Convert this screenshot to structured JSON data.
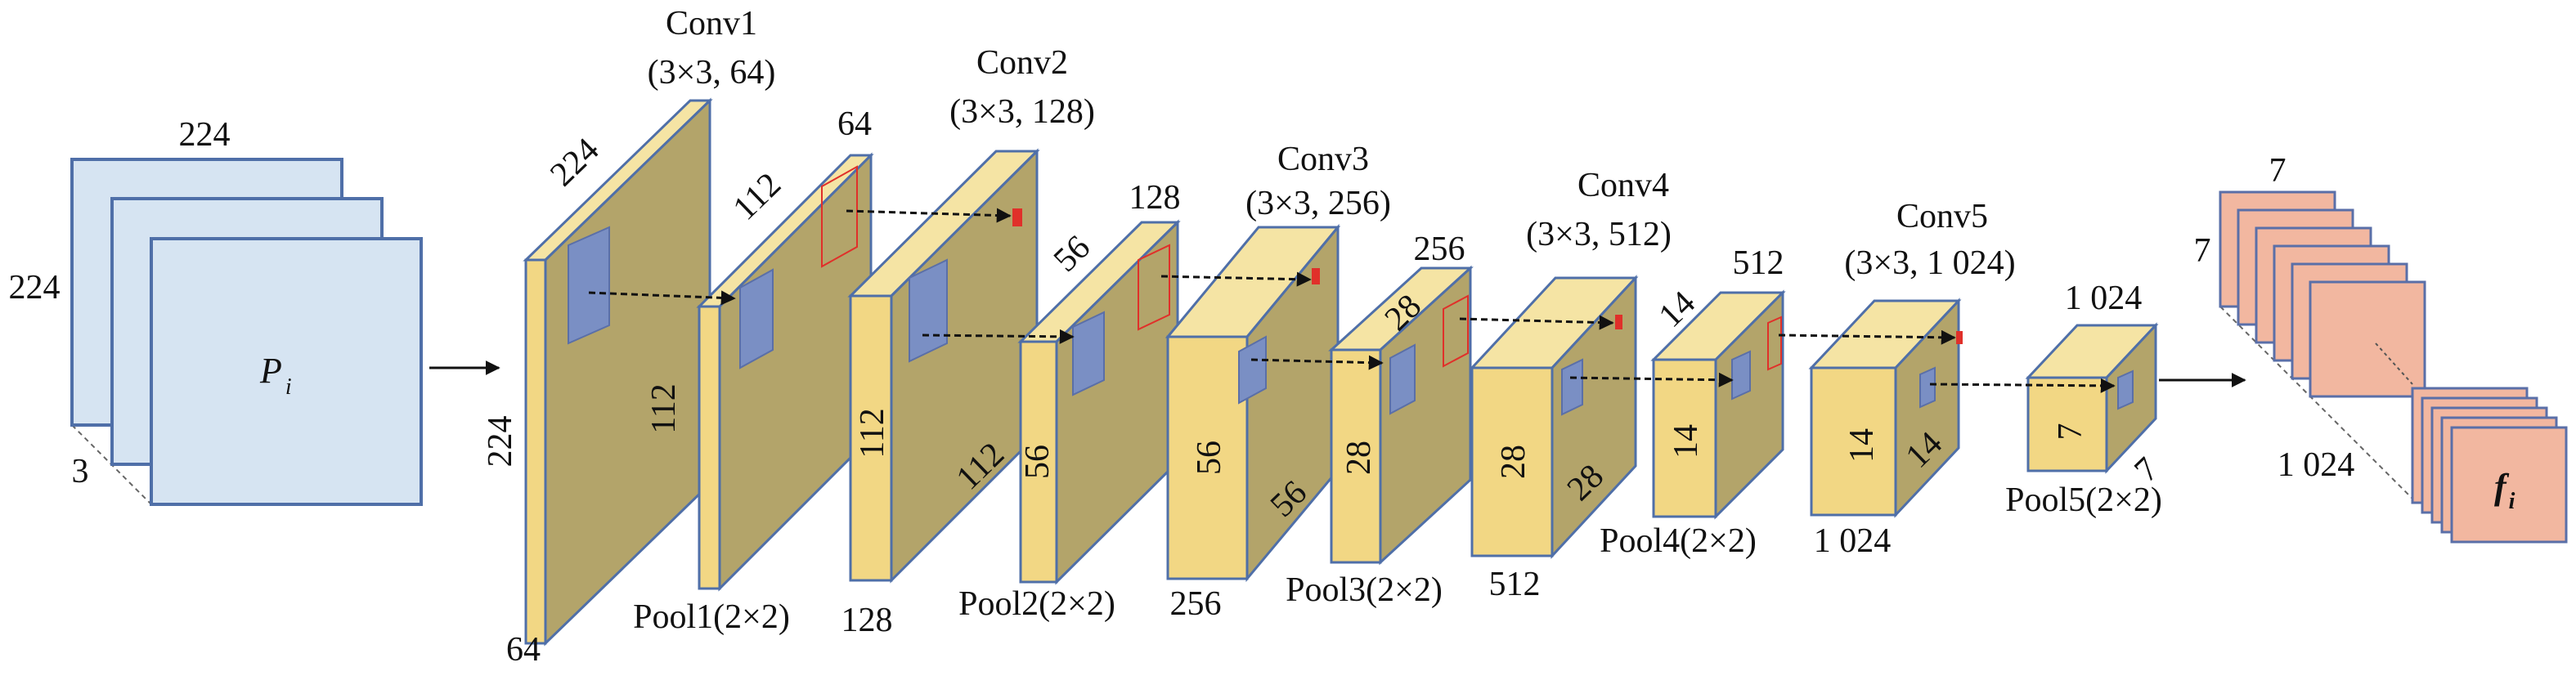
{
  "input": {
    "width_label": "224",
    "height_label": "224",
    "channels_label": "3",
    "symbol": "P",
    "subscript": "i",
    "colors": {
      "face": "#d6e4f2",
      "edge": "#4f6fa8"
    }
  },
  "conv1": {
    "name": "Conv1",
    "spec": "(3×3, 64)",
    "top_size": "224",
    "height": "224",
    "depth": "64",
    "inner_height": "112"
  },
  "pool1": {
    "name": "Pool1(2×2)",
    "top_size": "112",
    "depth_top": "64"
  },
  "conv2": {
    "name": "Conv2",
    "spec": "(3×3, 128)",
    "height": "112",
    "depth": "128",
    "diag_size": "112"
  },
  "pool2": {
    "name": "Pool2(2×2)",
    "top_size": "56",
    "height": "56",
    "depth_top": "128"
  },
  "conv3": {
    "name": "Conv3",
    "spec": "(3×3, 256)",
    "height": "56",
    "depth": "256",
    "diag_size": "56"
  },
  "pool3": {
    "name": "Pool3(2×2)",
    "top_size": "28",
    "height": "28",
    "depth_top": "256"
  },
  "conv4": {
    "name": "Conv4",
    "spec": "(3×3, 512)",
    "height": "28",
    "depth": "512",
    "diag_size": "28"
  },
  "pool4": {
    "name": "Pool4(2×2)",
    "top_size": "14",
    "height": "14",
    "depth_top": "512"
  },
  "conv5": {
    "name": "Conv5",
    "spec": "(3×3, 1 024)",
    "height": "14",
    "depth": "1 024",
    "diag_size": "14"
  },
  "pool5": {
    "name": "Pool5(2×2)",
    "depth_top": "1 024",
    "height": "7",
    "diag_size": "7"
  },
  "output": {
    "width_label": "7",
    "height_label": "7",
    "channels_label": "1 024",
    "symbol": "f",
    "subscript": "i",
    "colors": {
      "face": "#f2b7a0",
      "edge": "#5a6fa8"
    }
  },
  "colors": {
    "block_front": "#f2d784",
    "block_side": "#b3a46a",
    "block_top": "#f5e4a4",
    "block_edge": "#4f6fa8",
    "kernel": "#7a8fc4",
    "receptive_field": "#e0302a"
  }
}
